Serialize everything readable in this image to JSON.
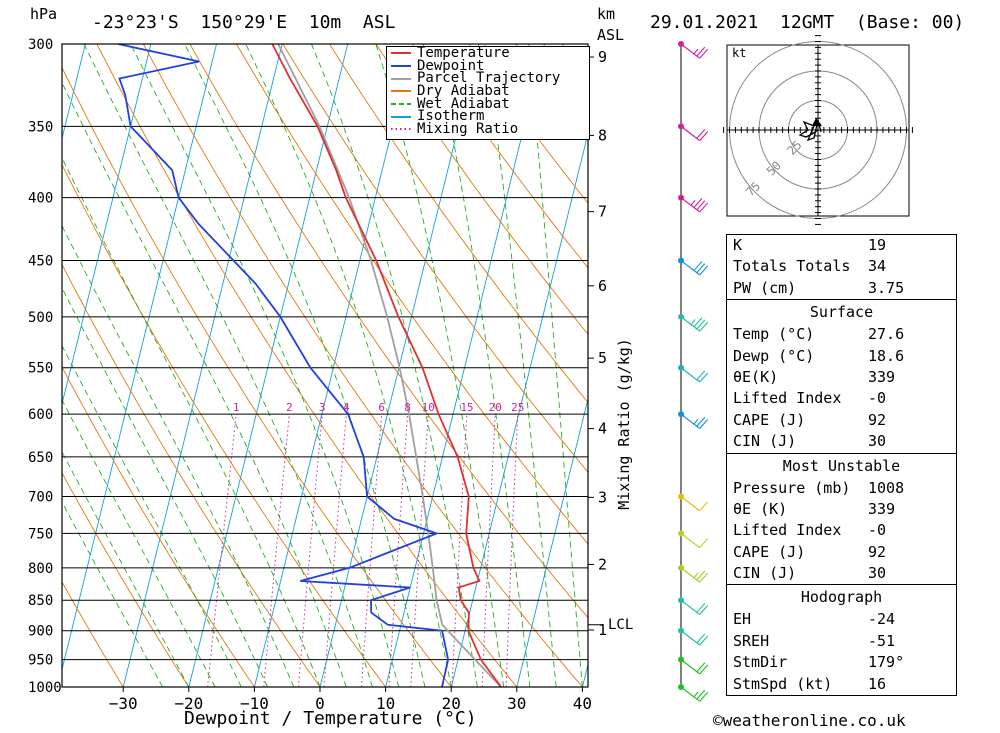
{
  "header": {
    "pressure_unit": "hPa",
    "location": "-23°23'S  150°29'E  10m  ASL",
    "height_unit": "km",
    "height_ref": "ASL",
    "datetime": "29.01.2021  12GMT  (Base: 00)"
  },
  "chart_data": {
    "type": "line",
    "subtype": "skew-T log-P",
    "xlabel": "Dewpoint / Temperature (°C)",
    "ylabel_left": "hPa",
    "ylabel_right": "Mixing Ratio (g/kg)",
    "x_ticks": [
      -30,
      -20,
      -10,
      0,
      10,
      20,
      30,
      40
    ],
    "pressure_levels": [
      300,
      350,
      400,
      450,
      500,
      550,
      600,
      650,
      700,
      750,
      800,
      850,
      900,
      950,
      1000
    ],
    "height_ticks_km": [
      1,
      2,
      3,
      4,
      5,
      6,
      7,
      8,
      9
    ],
    "lcl_label": "LCL",
    "lcl_pressure": 890,
    "mixing_ratio_labels": [
      "1",
      "2",
      "3",
      "4",
      "6",
      "8",
      "10",
      "15",
      "20",
      "25"
    ],
    "legend": [
      {
        "name": "Temperature",
        "color": "#e03030",
        "style": "solid"
      },
      {
        "name": "Dewpoint",
        "color": "#2040e0",
        "style": "solid"
      },
      {
        "name": "Parcel Trajectory",
        "color": "#a0a0a0",
        "style": "solid"
      },
      {
        "name": "Dry Adiabat",
        "color": "#e07a10",
        "style": "solid"
      },
      {
        "name": "Wet Adiabat",
        "color": "#20b020",
        "style": "dashed"
      },
      {
        "name": "Isotherm",
        "color": "#10a0e0",
        "style": "solid"
      },
      {
        "name": "Mixing Ratio",
        "color": "#d020a0",
        "style": "dotted"
      }
    ],
    "series": [
      {
        "name": "Temperature",
        "color": "#e03030",
        "points": [
          [
            1000,
            27.6
          ],
          [
            950,
            23.5
          ],
          [
            900,
            20.5
          ],
          [
            870,
            19.9
          ],
          [
            850,
            18.2
          ],
          [
            830,
            17.4
          ],
          [
            820,
            20.3
          ],
          [
            800,
            18.9
          ],
          [
            750,
            16.5
          ],
          [
            700,
            15.5
          ],
          [
            650,
            12.3
          ],
          [
            600,
            7.8
          ],
          [
            550,
            3.6
          ],
          [
            500,
            -2.0
          ],
          [
            450,
            -7.5
          ],
          [
            400,
            -14.5
          ],
          [
            380,
            -17.0
          ],
          [
            350,
            -21.5
          ],
          [
            320,
            -27.5
          ],
          [
            300,
            -31.5
          ]
        ]
      },
      {
        "name": "Dewpoint",
        "color": "#2040e0",
        "points": [
          [
            1000,
            18.6
          ],
          [
            950,
            18.5
          ],
          [
            900,
            16.5
          ],
          [
            890,
            8.0
          ],
          [
            870,
            5.0
          ],
          [
            850,
            4.5
          ],
          [
            830,
            10.0
          ],
          [
            820,
            -7.0
          ],
          [
            800,
            0.0
          ],
          [
            750,
            12.0
          ],
          [
            730,
            5.0
          ],
          [
            700,
            0.0
          ],
          [
            650,
            -2.0
          ],
          [
            600,
            -6.0
          ],
          [
            550,
            -13.5
          ],
          [
            500,
            -20.0
          ],
          [
            470,
            -25.0
          ],
          [
            420,
            -36.0
          ],
          [
            400,
            -40.0
          ],
          [
            380,
            -42.0
          ],
          [
            350,
            -50.0
          ],
          [
            330,
            -52.0
          ],
          [
            320,
            -53.5
          ],
          [
            310,
            -42.0
          ],
          [
            300,
            -55.0
          ]
        ]
      },
      {
        "name": "Parcel Trajectory",
        "color": "#a0a0a0",
        "points": [
          [
            1000,
            27.6
          ],
          [
            950,
            22.6
          ],
          [
            890,
            16.3
          ],
          [
            850,
            14.5
          ],
          [
            800,
            12.7
          ],
          [
            750,
            10.7
          ],
          [
            700,
            8.5
          ],
          [
            650,
            6.0
          ],
          [
            600,
            3.3
          ],
          [
            550,
            0.1
          ],
          [
            500,
            -3.7
          ],
          [
            450,
            -8.3
          ],
          [
            400,
            -14.0
          ],
          [
            350,
            -21.2
          ],
          [
            300,
            -30.6
          ]
        ]
      }
    ],
    "wind_profile_kt": [
      {
        "p": 1000,
        "spd": 16,
        "color": "#20c020"
      },
      {
        "p": 950,
        "spd": 20,
        "color": "#20c020"
      },
      {
        "p": 900,
        "spd": 20,
        "color": "#20c0a0"
      },
      {
        "p": 850,
        "spd": 20,
        "color": "#20c0a0"
      },
      {
        "p": 800,
        "spd": 15,
        "color": "#a0d020"
      },
      {
        "p": 750,
        "spd": 10,
        "color": "#c0d020"
      },
      {
        "p": 700,
        "spd": 10,
        "color": "#e0c000"
      },
      {
        "p": 600,
        "spd": 15,
        "color": "#1090e0"
      },
      {
        "p": 550,
        "spd": 20,
        "color": "#20b0c0"
      },
      {
        "p": 500,
        "spd": 25,
        "color": "#20c0a0"
      },
      {
        "p": 450,
        "spd": 30,
        "color": "#1090e0"
      },
      {
        "p": 400,
        "spd": 25,
        "color": "#d020a0"
      },
      {
        "p": 350,
        "spd": 20,
        "color": "#d020a0"
      },
      {
        "p": 300,
        "spd": 15,
        "color": "#d020a0"
      }
    ]
  },
  "hodograph": {
    "unit": "kt",
    "ring_labels": [
      "25",
      "50",
      "75"
    ]
  },
  "indices": {
    "k_label": "K",
    "k_value": "19",
    "tt_label": "Totals Totals",
    "tt_value": "34",
    "pw_label": "PW (cm)",
    "pw_value": "3.75",
    "surface_title": "Surface",
    "s_temp_label": "Temp (°C)",
    "s_temp_value": "27.6",
    "s_dewp_label": "Dewp (°C)",
    "s_dewp_value": "18.6",
    "s_theta_label": "θE(K)",
    "s_theta_value": "339",
    "s_li_label": "Lifted Index",
    "s_li_value": "-0",
    "s_cape_label": "CAPE (J)",
    "s_cape_value": "92",
    "s_cin_label": "CIN (J)",
    "s_cin_value": "30",
    "mu_title": "Most Unstable",
    "mu_pres_label": "Pressure (mb)",
    "mu_pres_value": "1008",
    "mu_theta_label": "θE (K)",
    "mu_theta_value": "339",
    "mu_li_label": "Lifted Index",
    "mu_li_value": "-0",
    "mu_cape_label": "CAPE (J)",
    "mu_cape_value": "92",
    "mu_cin_label": "CIN (J)",
    "mu_cin_value": "30",
    "hodo_title": "Hodograph",
    "eh_label": "EH",
    "eh_value": "-24",
    "sreh_label": "SREH",
    "sreh_value": "-51",
    "stmdir_label": "StmDir",
    "stmdir_value": "179°",
    "stmspd_label": "StmSpd (kt)",
    "stmspd_value": "16"
  },
  "credit": "©weatheronline.co.uk"
}
